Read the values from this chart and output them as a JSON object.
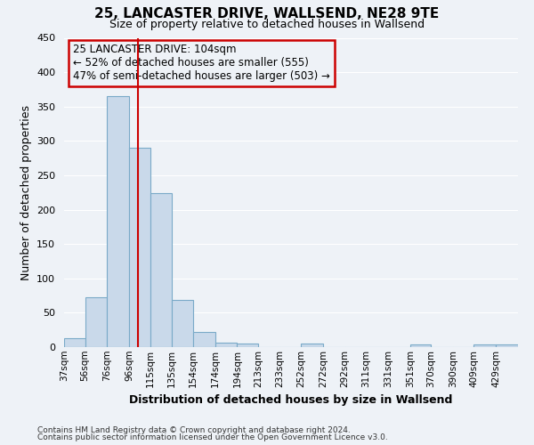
{
  "title": "25, LANCASTER DRIVE, WALLSEND, NE28 9TE",
  "subtitle": "Size of property relative to detached houses in Wallsend",
  "xlabel": "Distribution of detached houses by size in Wallsend",
  "ylabel": "Number of detached properties",
  "bar_labels": [
    "37sqm",
    "56sqm",
    "76sqm",
    "96sqm",
    "115sqm",
    "135sqm",
    "154sqm",
    "174sqm",
    "194sqm",
    "213sqm",
    "233sqm",
    "252sqm",
    "272sqm",
    "292sqm",
    "311sqm",
    "331sqm",
    "351sqm",
    "370sqm",
    "390sqm",
    "409sqm",
    "429sqm"
  ],
  "bar_values": [
    13,
    72,
    365,
    290,
    224,
    68,
    22,
    6,
    5,
    0,
    0,
    5,
    0,
    0,
    0,
    0,
    4,
    0,
    0,
    4,
    4
  ],
  "bar_color": "#c9d9ea",
  "bar_edgecolor": "#7aaac8",
  "ylim": [
    0,
    450
  ],
  "yticks": [
    0,
    50,
    100,
    150,
    200,
    250,
    300,
    350,
    400,
    450
  ],
  "left_edges": [
    37,
    56,
    76,
    96,
    115,
    135,
    154,
    174,
    194,
    213,
    233,
    252,
    272,
    292,
    311,
    331,
    351,
    370,
    390,
    409,
    429
  ],
  "property_line_x": 104,
  "property_line_label": "25 LANCASTER DRIVE: 104sqm",
  "annotation_line1": "← 52% of detached houses are smaller (555)",
  "annotation_line2": "47% of semi-detached houses are larger (503) →",
  "vline_color": "#cc0000",
  "annotation_box_color": "#cc0000",
  "footer1": "Contains HM Land Registry data © Crown copyright and database right 2024.",
  "footer2": "Contains public sector information licensed under the Open Government Licence v3.0.",
  "background_color": "#eef2f7",
  "grid_color": "#ffffff"
}
